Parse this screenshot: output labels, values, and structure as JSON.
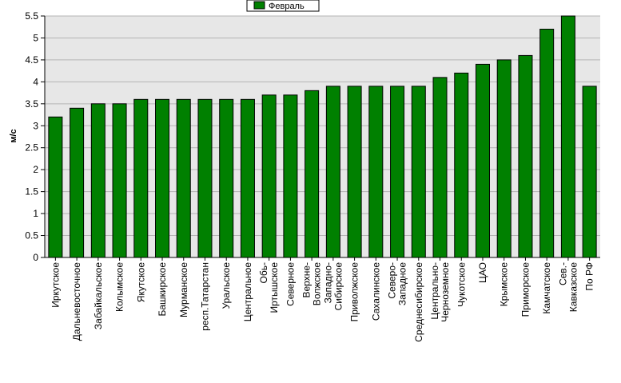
{
  "chart_data": {
    "type": "bar",
    "title": "",
    "xlabel": "",
    "ylabel": "м/с",
    "ylim": [
      0,
      5.5
    ],
    "ytick_step": 0.5,
    "yticks": [
      "0",
      "0.5",
      "1",
      "1.5",
      "2",
      "2.5",
      "3",
      "3.5",
      "4",
      "4.5",
      "5",
      "5.5"
    ],
    "grid": true,
    "legend_position": "top-center",
    "categories": [
      "Иркутское",
      "Дальневосточное",
      "Забайкальское",
      "Колымское",
      "Якутское",
      "Башкирское",
      "Мурманское",
      "респ.Татарстан",
      "Уральское",
      "Центральное",
      "Обь-Иртышское",
      "Северное",
      "Верхне-Волжское",
      "Западно-Сибирское",
      "Приволжское",
      "Сахалинское",
      "Северо-Западное",
      "Среднесибирское",
      "Центрально-Черноземное",
      "Чукотское",
      "ЦАО",
      "Крымское",
      "Приморское",
      "Камчатское",
      "Сев.-Кавказское",
      "По РФ"
    ],
    "series": [
      {
        "name": "Февраль",
        "color": "#008000",
        "values": [
          3.2,
          3.4,
          3.5,
          3.5,
          3.6,
          3.6,
          3.6,
          3.6,
          3.6,
          3.6,
          3.7,
          3.7,
          3.8,
          3.9,
          3.9,
          3.9,
          3.9,
          3.9,
          4.1,
          4.2,
          4.4,
          4.5,
          4.6,
          5.2,
          5.5,
          3.9
        ]
      }
    ],
    "colors": {
      "plot_background": "#e7e7e7",
      "grid": "#b4b4b4"
    }
  }
}
